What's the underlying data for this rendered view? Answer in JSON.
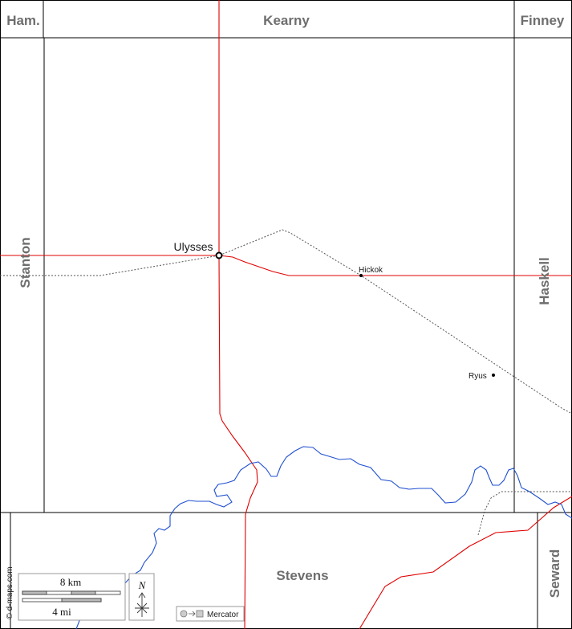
{
  "counties": {
    "north_left": "Ham.",
    "north": "Kearny",
    "north_right": "Finney",
    "west": "Stanton",
    "east": "Haskell",
    "south": "Stevens",
    "south_east": "Seward"
  },
  "towns": {
    "seat": "Ulysses",
    "hickok": "Hickok",
    "ryus": "Ryus"
  },
  "scale": {
    "km_label": "8 km",
    "mi_label": "4 mi"
  },
  "compass": {
    "north_label": "N"
  },
  "projection": {
    "label": "Mercator"
  },
  "credit": "© d-maps.com",
  "colors": {
    "roads": "#e00000",
    "river": "#1f4fd1",
    "railroad": "#555555",
    "boundaries": "#000000",
    "county_labels": "#6e6e6e"
  }
}
